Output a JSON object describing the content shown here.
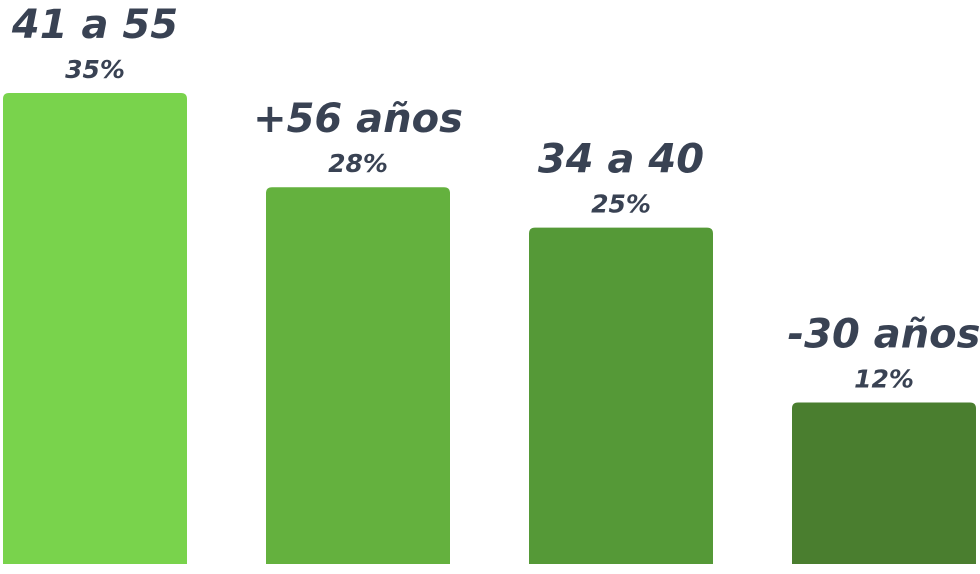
{
  "chart_data": {
    "type": "bar",
    "categories": [
      "41 a 55",
      "+56 años",
      "34 a 40",
      "-30 años"
    ],
    "values": [
      35,
      28,
      25,
      12
    ],
    "value_labels": [
      "35%",
      "28%",
      "25%",
      "12%"
    ],
    "colors": [
      "#79d34c",
      "#64b13e",
      "#559937",
      "#4a7e2f"
    ]
  }
}
